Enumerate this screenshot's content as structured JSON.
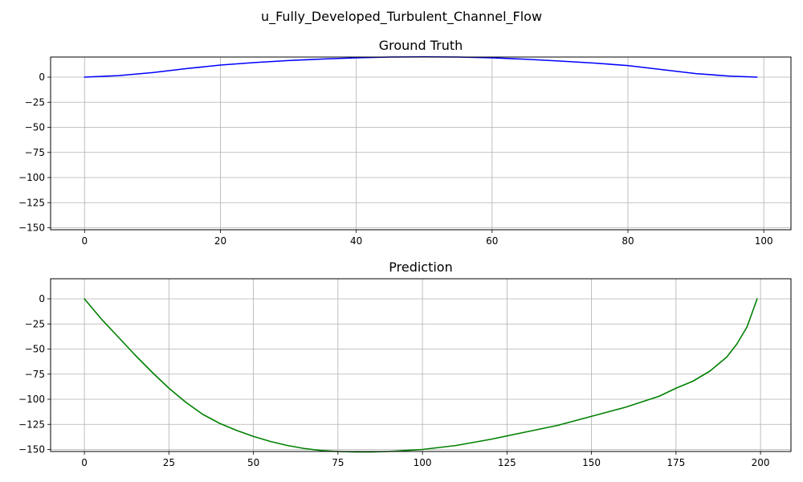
{
  "figure": {
    "suptitle": "u_Fully_Developed_Turbulent_Channel_Flow"
  },
  "chart_data": [
    {
      "type": "line",
      "title": "Ground Truth",
      "xlabel": "",
      "ylabel": "",
      "xlim": [
        -5,
        104
      ],
      "ylim": [
        -152,
        20
      ],
      "xticks": [
        0,
        20,
        40,
        60,
        80,
        100
      ],
      "yticks": [
        0,
        -25,
        -50,
        -75,
        -100,
        -125,
        -150
      ],
      "grid": true,
      "color": "#0000ff",
      "series": [
        {
          "x": [
            0,
            5,
            10,
            15,
            20,
            25,
            30,
            35,
            40,
            45,
            50,
            55,
            60,
            65,
            70,
            75,
            80,
            85,
            90,
            95,
            99
          ],
          "y": [
            0,
            1.5,
            4.5,
            8.5,
            12,
            14.5,
            16.5,
            18,
            19.2,
            20,
            20.2,
            20,
            19.2,
            17.8,
            16,
            14,
            11.5,
            7.5,
            3.5,
            1,
            0
          ]
        }
      ]
    },
    {
      "type": "line",
      "title": "Prediction",
      "xlabel": "",
      "ylabel": "",
      "xlim": [
        -10,
        209
      ],
      "ylim": [
        -152,
        20
      ],
      "xticks": [
        0,
        25,
        50,
        75,
        100,
        125,
        150,
        175,
        200
      ],
      "yticks": [
        0,
        -25,
        -50,
        -75,
        -100,
        -125,
        -150
      ],
      "grid": true,
      "color": "#008000",
      "series": [
        {
          "x": [
            0,
            5,
            10,
            15,
            20,
            25,
            30,
            35,
            40,
            45,
            50,
            55,
            60,
            65,
            70,
            75,
            80,
            85,
            90,
            95,
            100,
            110,
            120,
            130,
            140,
            150,
            160,
            170,
            175,
            180,
            185,
            190,
            193,
            196,
            199
          ],
          "y": [
            0,
            -20,
            -38,
            -56,
            -73,
            -89,
            -103,
            -115,
            -124,
            -131,
            -137,
            -142,
            -146,
            -149,
            -151,
            -152,
            -152.5,
            -152.5,
            -152,
            -151,
            -150,
            -146,
            -140,
            -133,
            -126,
            -117,
            -108,
            -97,
            -89,
            -82,
            -72,
            -58,
            -45,
            -28,
            0
          ]
        }
      ]
    }
  ]
}
